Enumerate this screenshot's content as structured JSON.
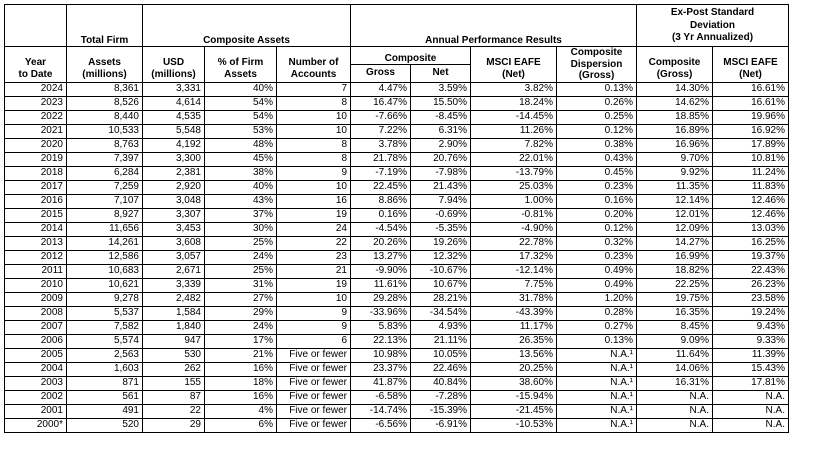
{
  "headers": {
    "year": "Year",
    "to_date": "to Date",
    "total_firm": "Total Firm",
    "composite_assets": "Composite Assets",
    "annual_perf": "Annual Performance Results",
    "ex_post_line1": "Ex-Post Standard",
    "ex_post_line2": "Deviation",
    "ex_post_line3": "(3 Yr Annualized)",
    "assets_millions_1": "Assets",
    "assets_millions_2": "(millions)",
    "usd_1": "USD",
    "usd_2": "(millions)",
    "pct_firm_1": "% of Firm",
    "pct_firm_2": "Assets",
    "num_accounts_1": "Number of",
    "num_accounts_2": "Accounts",
    "composite": "Composite",
    "gross": "Gross",
    "net": "Net",
    "msci_1": "MSCI EAFE",
    "msci_2": "(Net)",
    "dispersion_1": "Composite",
    "dispersion_2": "Dispersion",
    "dispersion_3": "(Gross)",
    "sd_comp_1": "Composite",
    "sd_comp_2": "(Gross)",
    "sd_msci_1": "MSCI EAFE",
    "sd_msci_2": "(Net)"
  },
  "rows": [
    [
      "2024",
      "8,361",
      "3,331",
      "40%",
      "7",
      "4.47%",
      "3.59%",
      "3.82%",
      "0.13%",
      "14.30%",
      "16.61%"
    ],
    [
      "2023",
      "8,526",
      "4,614",
      "54%",
      "8",
      "16.47%",
      "15.50%",
      "18.24%",
      "0.26%",
      "14.62%",
      "16.61%"
    ],
    [
      "2022",
      "8,440",
      "4,535",
      "54%",
      "10",
      "-7.66%",
      "-8.45%",
      "-14.45%",
      "0.25%",
      "18.85%",
      "19.96%"
    ],
    [
      "2021",
      "10,533",
      "5,548",
      "53%",
      "10",
      "7.22%",
      "6.31%",
      "11.26%",
      "0.12%",
      "16.89%",
      "16.92%"
    ],
    [
      "2020",
      "8,763",
      "4,192",
      "48%",
      "8",
      "3.78%",
      "2.90%",
      "7.82%",
      "0.38%",
      "16.96%",
      "17.89%"
    ],
    [
      "2019",
      "7,397",
      "3,300",
      "45%",
      "8",
      "21.78%",
      "20.76%",
      "22.01%",
      "0.43%",
      "9.70%",
      "10.81%"
    ],
    [
      "2018",
      "6,284",
      "2,381",
      "38%",
      "9",
      "-7.19%",
      "-7.98%",
      "-13.79%",
      "0.45%",
      "9.92%",
      "11.24%"
    ],
    [
      "2017",
      "7,259",
      "2,920",
      "40%",
      "10",
      "22.45%",
      "21.43%",
      "25.03%",
      "0.23%",
      "11.35%",
      "11.83%"
    ],
    [
      "2016",
      "7,107",
      "3,048",
      "43%",
      "16",
      "8.86%",
      "7.94%",
      "1.00%",
      "0.16%",
      "12.14%",
      "12.46%"
    ],
    [
      "2015",
      "8,927",
      "3,307",
      "37%",
      "19",
      "0.16%",
      "-0.69%",
      "-0.81%",
      "0.20%",
      "12.01%",
      "12.46%"
    ],
    [
      "2014",
      "11,656",
      "3,453",
      "30%",
      "24",
      "-4.54%",
      "-5.35%",
      "-4.90%",
      "0.12%",
      "12.09%",
      "13.03%"
    ],
    [
      "2013",
      "14,261",
      "3,608",
      "25%",
      "22",
      "20.26%",
      "19.26%",
      "22.78%",
      "0.32%",
      "14.27%",
      "16.25%"
    ],
    [
      "2012",
      "12,586",
      "3,057",
      "24%",
      "23",
      "13.27%",
      "12.32%",
      "17.32%",
      "0.23%",
      "16.99%",
      "19.37%"
    ],
    [
      "2011",
      "10,683",
      "2,671",
      "25%",
      "21",
      "-9.90%",
      "-10.67%",
      "-12.14%",
      "0.49%",
      "18.82%",
      "22.43%"
    ],
    [
      "2010",
      "10,621",
      "3,339",
      "31%",
      "19",
      "11.61%",
      "10.67%",
      "7.75%",
      "0.49%",
      "22.25%",
      "26.23%"
    ],
    [
      "2009",
      "9,278",
      "2,482",
      "27%",
      "10",
      "29.28%",
      "28.21%",
      "31.78%",
      "1.20%",
      "19.75%",
      "23.58%"
    ],
    [
      "2008",
      "5,537",
      "1,584",
      "29%",
      "9",
      "-33.96%",
      "-34.54%",
      "-43.39%",
      "0.28%",
      "16.35%",
      "19.24%"
    ],
    [
      "2007",
      "7,582",
      "1,840",
      "24%",
      "9",
      "5.83%",
      "4.93%",
      "11.17%",
      "0.27%",
      "8.45%",
      "9.43%"
    ],
    [
      "2006",
      "5,574",
      "947",
      "17%",
      "6",
      "22.13%",
      "21.11%",
      "26.35%",
      "0.13%",
      "9.09%",
      "9.33%"
    ],
    [
      "2005",
      "2,563",
      "530",
      "21%",
      "Five or fewer",
      "10.98%",
      "10.05%",
      "13.56%",
      "N.A.¹",
      "11.64%",
      "11.39%"
    ],
    [
      "2004",
      "1,603",
      "262",
      "16%",
      "Five or fewer",
      "23.37%",
      "22.46%",
      "20.25%",
      "N.A.¹",
      "14.06%",
      "15.43%"
    ],
    [
      "2003",
      "871",
      "155",
      "18%",
      "Five or fewer",
      "41.87%",
      "40.84%",
      "38.60%",
      "N.A.¹",
      "16.31%",
      "17.81%"
    ],
    [
      "2002",
      "561",
      "87",
      "16%",
      "Five or fewer",
      "-6.58%",
      "-7.28%",
      "-15.94%",
      "N.A.¹",
      "N.A.",
      "N.A."
    ],
    [
      "2001",
      "491",
      "22",
      "4%",
      "Five or fewer",
      "-14.74%",
      "-15.39%",
      "-21.45%",
      "N.A.¹",
      "N.A.",
      "N.A."
    ],
    [
      "2000*",
      "520",
      "29",
      "6%",
      "Five or fewer",
      "-6.56%",
      "-6.91%",
      "-10.53%",
      "N.A.¹",
      "N.A.",
      "N.A."
    ]
  ]
}
